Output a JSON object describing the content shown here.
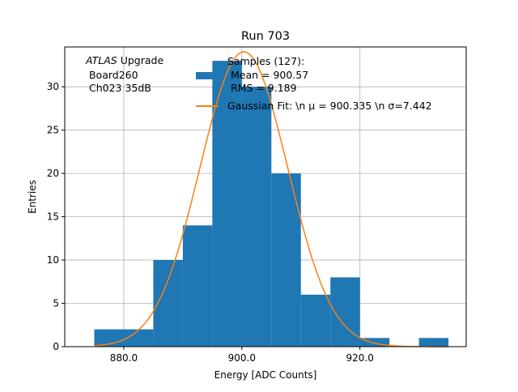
{
  "chart_data": {
    "type": "bar",
    "title": "Run 703",
    "xlabel": "Energy [ADC Counts]",
    "ylabel": "Entries",
    "xlim": [
      870,
      938
    ],
    "ylim": [
      0,
      34.6
    ],
    "grid": true,
    "x_ticks": [
      880,
      900,
      920
    ],
    "x_tick_labels": [
      "880.0",
      "900.0",
      "920.0"
    ],
    "y_ticks": [
      0,
      5,
      10,
      15,
      20,
      25,
      30
    ],
    "y_tick_labels": [
      "0",
      "5",
      "10",
      "15",
      "20",
      "25",
      "30"
    ],
    "bins": {
      "edges": [
        875,
        880,
        885,
        890,
        895,
        900,
        905,
        910,
        915,
        920,
        925,
        930,
        935
      ],
      "counts": [
        2,
        2,
        10,
        14,
        33,
        30,
        20,
        6,
        8,
        1,
        0,
        1
      ]
    },
    "fit": {
      "mu": 900.335,
      "sigma": 7.442,
      "x_range": [
        875,
        935
      ]
    },
    "annotation": {
      "line1_italic": "ATLAS",
      "line1_rest": " Upgrade",
      "line2": " Board260",
      "line3": " Ch023 35dB"
    },
    "legend": {
      "position": "top-right",
      "histogram_lines": [
        "Samples (127):",
        " Mean = 900.57",
        " RMS = 9.189"
      ],
      "fit_label": "Gaussian Fit: \\n μ = 900.335 \\n σ=7.442"
    },
    "colors": {
      "bars": "#1f77b4",
      "fit": "#ff7f0e",
      "grid": "#b0b0b0",
      "axis": "#000000"
    }
  }
}
